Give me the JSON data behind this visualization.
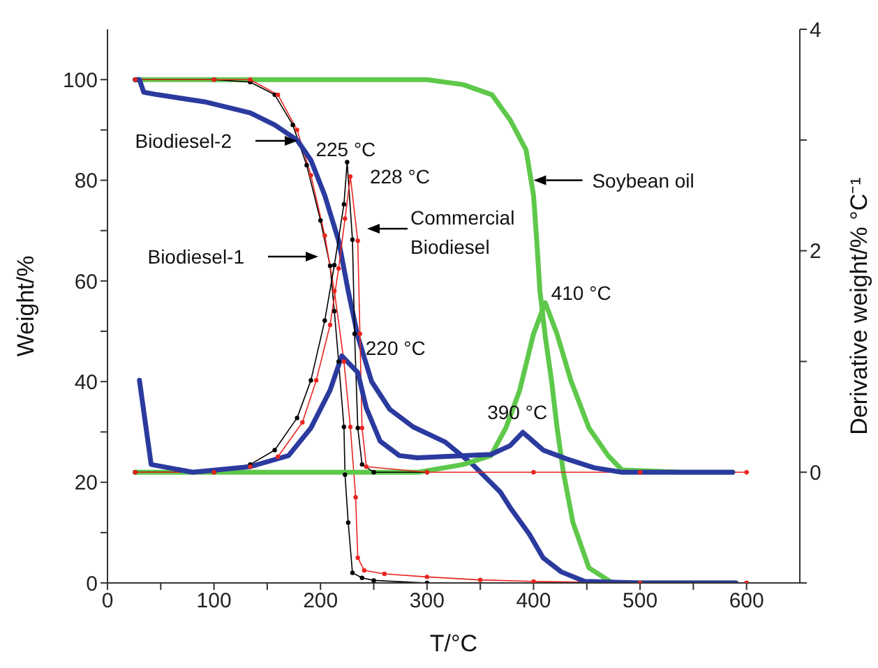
{
  "chart_data": {
    "type": "line",
    "xlabel": "T/°C",
    "ylabel": "Weight/%",
    "y2label": "Derivative weight/% °C⁻¹",
    "xlim": [
      0,
      650
    ],
    "xticks": [
      0,
      {
        "value": 50,
        "label": null
      },
      100,
      {
        "value": 150,
        "label": null
      },
      200,
      {
        "value": 250,
        "label": null
      },
      300,
      {
        "value": 350,
        "label": null
      },
      400,
      {
        "value": 450,
        "label": null
      },
      500,
      {
        "value": 550,
        "label": null
      },
      600
    ],
    "ylim": [
      0,
      110
    ],
    "yticks": [
      0,
      {
        "value": 10,
        "label": null
      },
      20,
      {
        "value": 30,
        "label": null
      },
      40,
      {
        "value": 50,
        "label": null
      },
      60,
      {
        "value": 70,
        "label": null
      },
      80,
      {
        "value": 90,
        "label": null
      },
      100
    ],
    "y2lim": [
      -1,
      4
    ],
    "y2ticks": [
      {
        "value": -1,
        "label": null
      },
      0,
      {
        "value": 1,
        "label": null
      },
      2,
      {
        "value": 3,
        "label": null
      },
      4
    ],
    "marker": "none",
    "line_style": "solid",
    "grid": false,
    "series": [
      {
        "color": "#5ec84a",
        "x": [
          26,
          100,
          200,
          300,
          334,
          361,
          378,
          393,
          400,
          403,
          406,
          411,
          417,
          422,
          428,
          437,
          452,
          474,
          500,
          590
        ],
        "values": [
          100,
          100,
          100,
          100,
          99,
          97,
          92,
          86,
          77,
          68,
          58,
          49,
          40,
          31,
          22,
          12,
          3,
          0,
          0,
          0
        ]
      },
      {
        "color": "#000000",
        "marker": "circle",
        "x": [
          26,
          100,
          134,
          157,
          174,
          187,
          200,
          209,
          213,
          217,
          222,
          223,
          226,
          230,
          239,
          250,
          300,
          600
        ],
        "values": [
          100,
          100,
          99.5,
          97,
          91,
          83,
          72,
          63,
          54,
          44,
          31,
          21.5,
          12,
          2,
          1,
          0.5,
          0,
          0
        ]
      },
      {
        "color": "#e8251f",
        "marker": "circle",
        "x": [
          26,
          100,
          134,
          160,
          178,
          191,
          204,
          213,
          222,
          228,
          233,
          235,
          241,
          260,
          300,
          350,
          400,
          500,
          600
        ],
        "values": [
          100,
          100,
          100,
          97,
          90,
          81,
          69,
          58,
          44,
          31,
          17,
          5,
          2.5,
          1.8,
          1.2,
          0.6,
          0.3,
          0,
          0
        ]
      },
      {
        "color": "#2b3a9e",
        "x": [
          26,
          30,
          34,
          47,
          91,
          134,
          157,
          178,
          191,
          204,
          217,
          226,
          235,
          248,
          265,
          287,
          317,
          343,
          369,
          378,
          396,
          409,
          426,
          448,
          500,
          590
        ],
        "values": [
          100,
          100,
          97.5,
          97,
          95.6,
          93.4,
          91,
          88,
          84,
          77,
          68,
          58,
          49,
          40,
          34.5,
          31,
          28,
          23.5,
          18,
          15,
          9.7,
          5,
          2.2,
          0.3,
          0,
          0
        ]
      },
      {
        "color": "#5ec84a",
        "axis": "y2",
        "x": [
          26,
          100,
          200,
          292,
          334,
          360,
          374,
          387,
          400,
          411,
          422,
          435,
          452,
          470,
          483,
          540,
          587
        ],
        "values": [
          0,
          0,
          0,
          0,
          0.07,
          0.15,
          0.4,
          0.74,
          1.25,
          1.53,
          1.25,
          0.83,
          0.4,
          0.15,
          0.02,
          0,
          0
        ]
      },
      {
        "color": "#000000",
        "axis": "y2",
        "marker": "circle",
        "x": [
          26,
          100,
          134,
          157,
          178,
          191,
          204,
          213,
          222,
          225,
          230,
          232,
          235,
          239,
          250,
          300
        ],
        "values": [
          0,
          0,
          0.07,
          0.2,
          0.49,
          0.83,
          1.37,
          1.87,
          2.42,
          2.8,
          2.1,
          1.25,
          0.4,
          0.07,
          0,
          0
        ]
      },
      {
        "color": "#e8251f",
        "axis": "y2",
        "marker": "circle",
        "x": [
          26,
          100,
          134,
          160,
          183,
          196,
          209,
          217,
          223,
          228,
          235,
          237,
          239,
          243,
          300,
          400,
          500,
          600
        ],
        "values": [
          0,
          0,
          0.05,
          0.14,
          0.45,
          0.83,
          1.33,
          1.84,
          2.29,
          2.67,
          2.09,
          1.25,
          0.4,
          0.05,
          0,
          0,
          0,
          0
        ]
      },
      {
        "color": "#2b3a9e",
        "axis": "y2",
        "x": [
          30,
          41,
          80,
          134,
          170,
          191,
          209,
          220,
          235,
          243,
          256,
          274,
          291,
          334,
          360,
          378,
          390,
          409,
          431,
          457,
          483,
          587
        ],
        "values": [
          0.83,
          0.07,
          0,
          0.05,
          0.15,
          0.4,
          0.74,
          1.05,
          0.9,
          0.58,
          0.28,
          0.15,
          0.13,
          0.15,
          0.16,
          0.24,
          0.36,
          0.2,
          0.12,
          0.04,
          0,
          0
        ]
      }
    ],
    "annotations": [
      "Biodiesel-2",
      "Biodiesel-1",
      "Commercial Biodiesel",
      {
        "text": "Soybean oil",
        "x": 400,
        "y": 80
      },
      {
        "text": "225 °C",
        "x": 225,
        "y": 84
      },
      {
        "text": "228 °C",
        "x": 228,
        "y": 81
      },
      {
        "text": "220 °C",
        "x": 220,
        "y": 45
      },
      {
        "text": "390 °C",
        "x": 390,
        "y": 30
      },
      {
        "text": "410 °C",
        "x": 410,
        "y": 56
      }
    ]
  }
}
